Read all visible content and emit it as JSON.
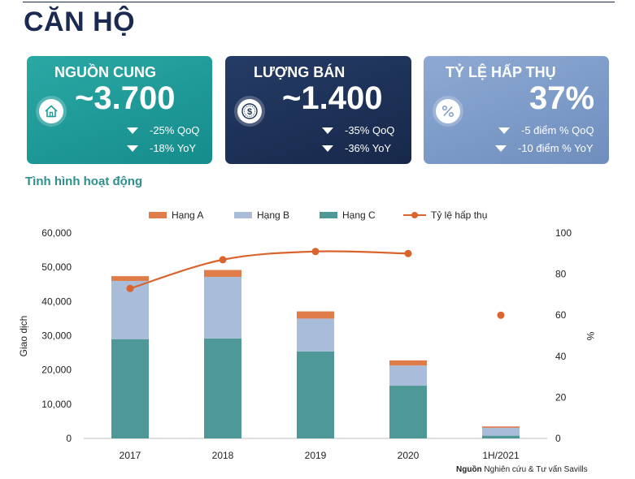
{
  "page_title": "CĂN HỘ",
  "cards": [
    {
      "title": "NGUỒN CUNG",
      "value": "~3.700",
      "icon": "house-icon",
      "changes": [
        "-25% QoQ",
        "-18% YoY"
      ]
    },
    {
      "title": "LƯỢNG BÁN",
      "value": "~1.400",
      "icon": "dollar-coin-icon",
      "changes": [
        "-35% QoQ",
        "-36% YoY"
      ]
    },
    {
      "title": "TỶ LỆ HẤP THỤ",
      "value": "37%",
      "icon": "percent-icon",
      "changes": [
        "-5 điểm % QoQ",
        "-10 điểm % YoY"
      ]
    }
  ],
  "section_title": "Tình hình hoạt động",
  "source": {
    "label": "Nguồn",
    "text": " Nghiên cứu & Tư vấn Savills"
  },
  "colors": {
    "hang_a": "#e07b4a",
    "hang_b": "#a9bcd9",
    "hang_c": "#4e9898",
    "rate": "#d9642e",
    "card1": "#1f9d9b",
    "card2": "#1e3358",
    "card3": "#7f9cc9"
  },
  "chart_data": {
    "type": "bar",
    "stacked": true,
    "categories": [
      "2017",
      "2018",
      "2019",
      "2020",
      "1H/2021"
    ],
    "series": [
      {
        "name": "Hạng C",
        "values": [
          29000,
          29200,
          25400,
          15400,
          800
        ]
      },
      {
        "name": "Hạng B",
        "values": [
          17000,
          18000,
          9600,
          5900,
          2300
        ]
      },
      {
        "name": "Hạng A",
        "values": [
          1400,
          2000,
          2100,
          1500,
          400
        ]
      }
    ],
    "line_series": {
      "name": "Tỷ lệ hấp thụ",
      "values": [
        73,
        87,
        91,
        90,
        60
      ],
      "connected_points": 4
    },
    "ylabel": "Giao dịch",
    "y2label": "%",
    "ylim": [
      0,
      60000
    ],
    "y2lim": [
      0,
      100
    ],
    "yticks": [
      "0",
      "10,000",
      "20,000",
      "30,000",
      "40,000",
      "50,000",
      "60,000"
    ],
    "y2ticks": [
      "0",
      "20",
      "40",
      "60",
      "80",
      "100"
    ],
    "legend_position": "top",
    "grid": false
  }
}
